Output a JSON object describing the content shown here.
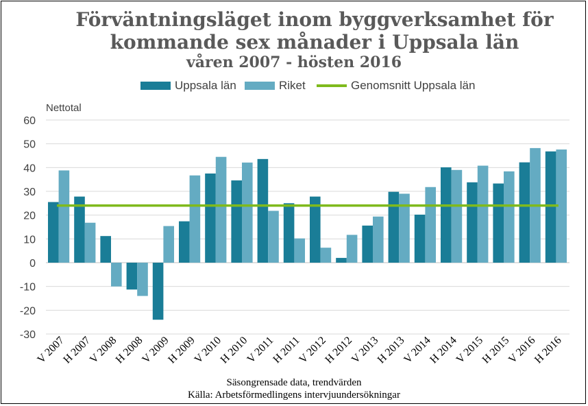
{
  "chart_data": {
    "type": "bar",
    "title_line1": "Förväntningsläget inom byggverksamhet för",
    "title_line2": "kommande sex månader i Uppsala län",
    "subtitle": "våren 2007 - hösten 2016",
    "ylabel": "Nettotal",
    "ylim": [
      -30,
      60
    ],
    "yticks": [
      -30,
      -20,
      -10,
      0,
      10,
      20,
      30,
      40,
      50,
      60
    ],
    "categories": [
      "V 2007",
      "H 2007",
      "V 2008",
      "H 2008",
      "V 2009",
      "H 2009",
      "V 2010",
      "H 2010",
      "V 2011",
      "H 2011",
      "V 2012",
      "H 2012",
      "V 2013",
      "H 2013",
      "V 2014",
      "H 2014",
      "V 2015",
      "H 2015",
      "V 2016",
      "H 2016"
    ],
    "series": [
      {
        "name": "Uppsala län",
        "color": "#1a7d97",
        "values": [
          25.5,
          27.8,
          11.2,
          -11.3,
          -24,
          17.4,
          37.5,
          34.6,
          43.6,
          25,
          27.8,
          2,
          15.6,
          29.8,
          20.2,
          40.1,
          33.8,
          33.3,
          42.2,
          46.8
        ]
      },
      {
        "name": "Riket",
        "color": "#64abc2",
        "values": [
          38.8,
          16.8,
          -10,
          -14,
          15.4,
          36.7,
          44.5,
          42.1,
          21.8,
          10.2,
          6.3,
          11.7,
          19.4,
          29,
          31.8,
          39,
          40.8,
          38.4,
          48.2,
          47.6
        ]
      }
    ],
    "reference_line": {
      "name": "Genomsnitt Uppsala län",
      "color": "#7fba1c",
      "value": 24
    },
    "notes": [
      "Säsongrensade data, trendvärden",
      "Källa: Arbetsförmedlingens intervjuundersökningar"
    ]
  }
}
